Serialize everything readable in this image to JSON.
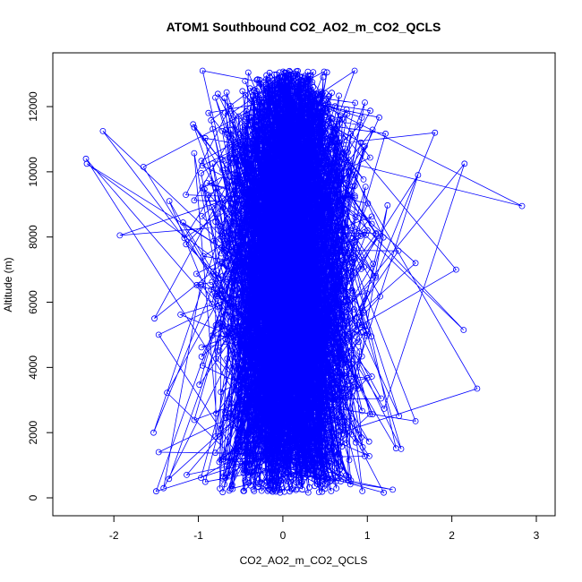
{
  "chart_data": {
    "type": "line",
    "title": "ATOM1 Southbound CO2_AO2_m_CO2_QCLS",
    "xlabel": "CO2_AO2_m_CO2_QCLS",
    "ylabel": "Altitude (m)",
    "xlim": [
      -2.5,
      3
    ],
    "ylim": [
      0,
      13100
    ],
    "xticks": [
      -2,
      -1,
      0,
      1,
      2,
      3
    ],
    "yticks": [
      0,
      2000,
      4000,
      6000,
      8000,
      10000,
      12000
    ],
    "grid": false,
    "series": [
      {
        "color": "#0000ff",
        "marker": "open-circle",
        "point_count": 2500,
        "altitude_range": [
          150,
          13100
        ],
        "spread_sd": 0.42,
        "outliers": [
          {
            "x": 2.83,
            "y": 8950
          },
          {
            "x": 2.3,
            "y": 3350
          },
          {
            "x": 2.15,
            "y": 10250
          },
          {
            "x": 2.14,
            "y": 5150
          },
          {
            "x": 2.05,
            "y": 7000
          },
          {
            "x": 1.8,
            "y": 11200
          },
          {
            "x": 1.6,
            "y": 9900
          },
          {
            "x": 1.57,
            "y": 2350
          },
          {
            "x": 1.57,
            "y": 7200
          },
          {
            "x": 1.4,
            "y": 1500
          },
          {
            "x": -2.33,
            "y": 10400
          },
          {
            "x": -2.32,
            "y": 10250
          },
          {
            "x": -2.13,
            "y": 11250
          },
          {
            "x": -1.93,
            "y": 8050
          },
          {
            "x": -1.65,
            "y": 10150
          },
          {
            "x": -1.52,
            "y": 5500
          },
          {
            "x": -1.53,
            "y": 2000
          },
          {
            "x": -1.5,
            "y": 200
          },
          {
            "x": -1.47,
            "y": 5000
          },
          {
            "x": -1.47,
            "y": 1400
          },
          {
            "x": 1.3,
            "y": 250
          },
          {
            "x": -0.95,
            "y": 13100
          },
          {
            "x": 0.85,
            "y": 13100
          }
        ]
      }
    ]
  }
}
